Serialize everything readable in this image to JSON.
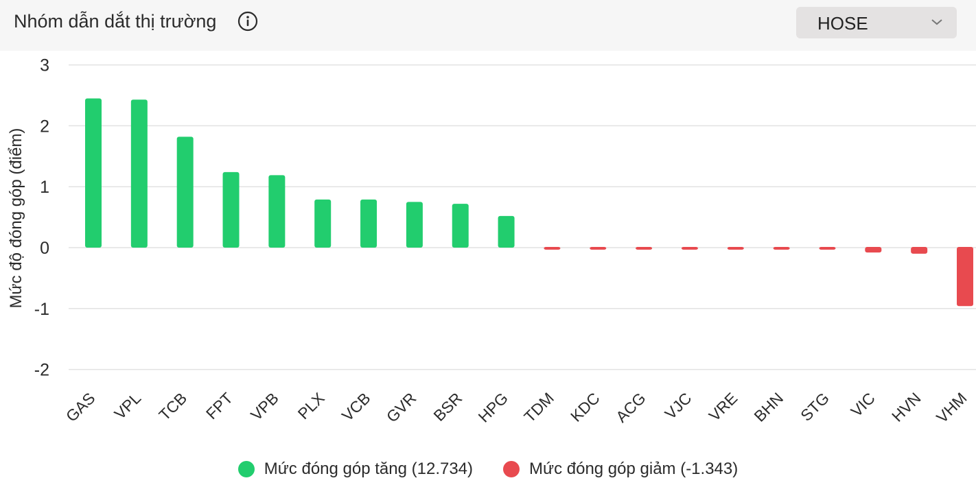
{
  "header": {
    "title": "Nhóm dẫn dắt thị trường",
    "info_icon": "info-icon",
    "exchange_select": {
      "value": "HOSE",
      "icon": "chevron-down-icon"
    }
  },
  "colors": {
    "positive": "#22cd6e",
    "negative": "#e84a4f",
    "grid": "#e2e2e2",
    "header_bg": "#f6f6f6"
  },
  "chart_data": {
    "type": "bar",
    "title": "",
    "xlabel": "",
    "ylabel": "Mức độ đóng góp (điểm)",
    "ylim": [
      -2,
      3
    ],
    "yticks": [
      3,
      2,
      1,
      0,
      -1,
      -2
    ],
    "grid": true,
    "categories": [
      "GAS",
      "VPL",
      "TCB",
      "FPT",
      "VPB",
      "PLX",
      "VCB",
      "GVR",
      "BSR",
      "HPG",
      "TDM",
      "KDC",
      "ACG",
      "VJC",
      "VRE",
      "BHN",
      "STG",
      "VIC",
      "HVN",
      "VHM"
    ],
    "values": [
      2.45,
      2.43,
      1.82,
      1.24,
      1.19,
      0.79,
      0.79,
      0.75,
      0.72,
      0.52,
      -0.01,
      -0.01,
      -0.01,
      -0.01,
      -0.01,
      -0.03,
      -0.03,
      -0.08,
      -0.1,
      -0.96
    ],
    "legend_position": "bottom",
    "legend": [
      {
        "label": "Mức đóng góp tăng (12.734)",
        "color": "#22cd6e"
      },
      {
        "label": "Mức đóng góp giảm (-1.343)",
        "color": "#e84a4f"
      }
    ]
  }
}
